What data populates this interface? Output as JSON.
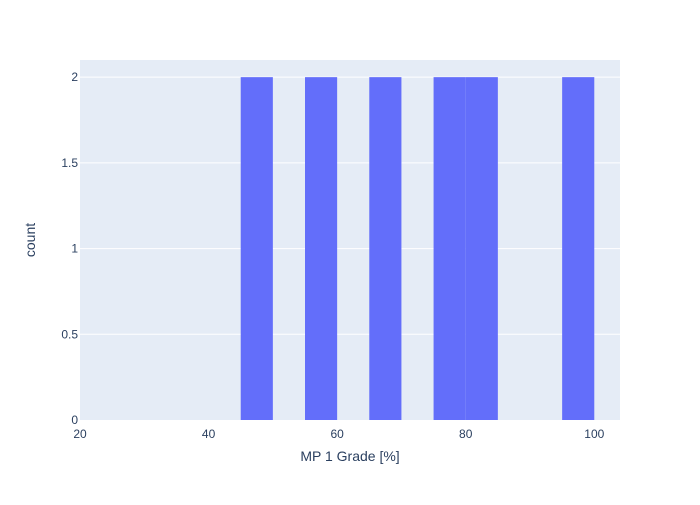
{
  "chart_data": {
    "type": "histogram",
    "xlabel": "MP 1 Grade [%]",
    "ylabel": "count",
    "xlim": [
      20,
      104
    ],
    "ylim": [
      0,
      2.1
    ],
    "x_ticks": [
      20,
      40,
      60,
      80,
      100
    ],
    "x_tick_labels": [
      "20",
      "40",
      "60",
      "80",
      "100"
    ],
    "y_ticks": [
      0,
      0.5,
      1,
      1.5,
      2
    ],
    "y_tick_labels": [
      "0",
      "0.5",
      "1",
      "1.5",
      "2"
    ],
    "bin_size": 5,
    "bins": [
      {
        "start": 45,
        "end": 50,
        "count": 2
      },
      {
        "start": 55,
        "end": 60,
        "count": 2
      },
      {
        "start": 65,
        "end": 70,
        "count": 2
      },
      {
        "start": 75,
        "end": 80,
        "count": 2
      },
      {
        "start": 80,
        "end": 85,
        "count": 2
      },
      {
        "start": 95,
        "end": 100,
        "count": 2
      }
    ],
    "grid": true,
    "colors": {
      "bar": "#636efa",
      "plot_background": "#e5ecf6",
      "grid": "#ffffff",
      "text": "#2a3f5f"
    }
  }
}
